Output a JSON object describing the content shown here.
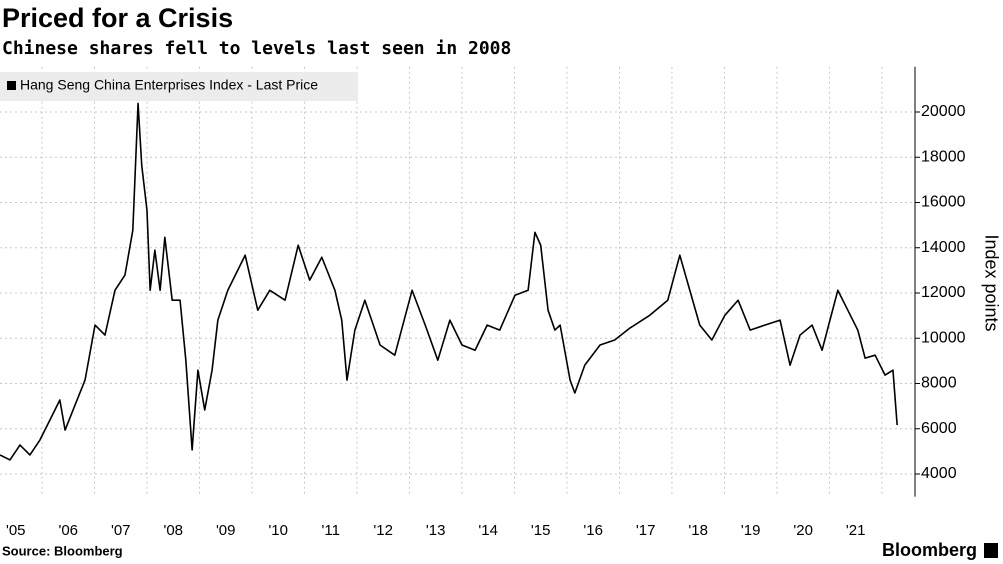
{
  "chart_data": {
    "type": "line",
    "title": "Priced for a Crisis",
    "subtitle": "Chinese shares fell to levels last seen in 2008",
    "source": "Source: Bloomberg",
    "brand": "Bloomberg",
    "y_axis_label": "Index points",
    "y_axis_side": "right",
    "grid": true,
    "legend_position": "upper left",
    "x": [
      2005.2,
      2005.39,
      2005.58,
      2005.77,
      2005.96,
      2006.15,
      2006.34,
      2006.44,
      2006.63,
      2006.82,
      2007.01,
      2007.2,
      2007.39,
      2007.58,
      2007.73,
      2007.83,
      2007.9,
      2008.0,
      2008.06,
      2008.15,
      2008.25,
      2008.34,
      2008.48,
      2008.63,
      2008.74,
      2008.86,
      2008.97,
      2009.1,
      2009.24,
      2009.35,
      2009.54,
      2009.87,
      2010.11,
      2010.34,
      2010.63,
      2010.88,
      2011.1,
      2011.33,
      2011.58,
      2011.71,
      2011.81,
      2011.96,
      2012.15,
      2012.44,
      2012.72,
      2013.05,
      2013.3,
      2013.54,
      2013.77,
      2014.0,
      2014.25,
      2014.48,
      2014.72,
      2015.01,
      2015.26,
      2015.39,
      2015.5,
      2015.64,
      2015.77,
      2015.87,
      2016.06,
      2016.15,
      2016.34,
      2016.63,
      2016.91,
      2017.2,
      2017.58,
      2017.92,
      2018.15,
      2018.34,
      2018.53,
      2018.76,
      2019.01,
      2019.26,
      2019.49,
      2019.77,
      2020.06,
      2020.25,
      2020.44,
      2020.67,
      2020.86,
      2021.01,
      2021.16,
      2021.35,
      2021.54,
      2021.68,
      2021.87,
      2022.06,
      2022.21,
      2022.29
    ],
    "series": [
      {
        "name": "Hang Seng China Enterprises Index - Last Price",
        "color": "#000000",
        "values": [
          4840,
          4620,
          5280,
          4840,
          5500,
          6380,
          7270,
          5940,
          7050,
          8150,
          10580,
          10140,
          12120,
          12790,
          14770,
          20380,
          17640,
          15650,
          12120,
          13890,
          12120,
          14460,
          11680,
          11680,
          9030,
          5060,
          8590,
          6830,
          8590,
          10800,
          12120,
          13670,
          11240,
          12120,
          11680,
          14110,
          12570,
          13580,
          12120,
          10800,
          8150,
          10360,
          11680,
          9700,
          9250,
          12120,
          10580,
          9030,
          10800,
          9700,
          9470,
          10580,
          10360,
          11900,
          12120,
          14680,
          14110,
          11240,
          10360,
          10580,
          8150,
          7580,
          8810,
          9700,
          9920,
          10450,
          11020,
          11680,
          13670,
          12120,
          10580,
          9920,
          11020,
          11680,
          10360,
          10580,
          10800,
          8810,
          10140,
          10580,
          9470,
          10800,
          12120,
          11240,
          10360,
          9120,
          9250,
          8370,
          8590,
          6160
        ]
      }
    ],
    "xlim": [
      2005.2,
      2022.63
    ],
    "xticks": [
      {
        "value": 2005.5,
        "label": "'05"
      },
      {
        "value": 2006.5,
        "label": "'06"
      },
      {
        "value": 2007.5,
        "label": "'07"
      },
      {
        "value": 2008.5,
        "label": "'08"
      },
      {
        "value": 2009.5,
        "label": "'09"
      },
      {
        "value": 2010.5,
        "label": "'10"
      },
      {
        "value": 2011.5,
        "label": "'11"
      },
      {
        "value": 2012.5,
        "label": "'12"
      },
      {
        "value": 2013.5,
        "label": "'13"
      },
      {
        "value": 2014.5,
        "label": "'14"
      },
      {
        "value": 2015.5,
        "label": "'15"
      },
      {
        "value": 2016.5,
        "label": "'16"
      },
      {
        "value": 2017.5,
        "label": "'17"
      },
      {
        "value": 2018.5,
        "label": "'18"
      },
      {
        "value": 2019.5,
        "label": "'19"
      },
      {
        "value": 2020.5,
        "label": "'20"
      },
      {
        "value": 2021.5,
        "label": "'21"
      }
    ],
    "x_gridlines": [
      2006,
      2007,
      2008,
      2009,
      2010,
      2011,
      2012,
      2013,
      2014,
      2015,
      2016,
      2017,
      2018,
      2019,
      2020,
      2021,
      2022
    ],
    "ylim": [
      3000,
      22000
    ],
    "yticks": [
      4000,
      6000,
      8000,
      10000,
      12000,
      14000,
      16000,
      18000,
      20000
    ]
  }
}
